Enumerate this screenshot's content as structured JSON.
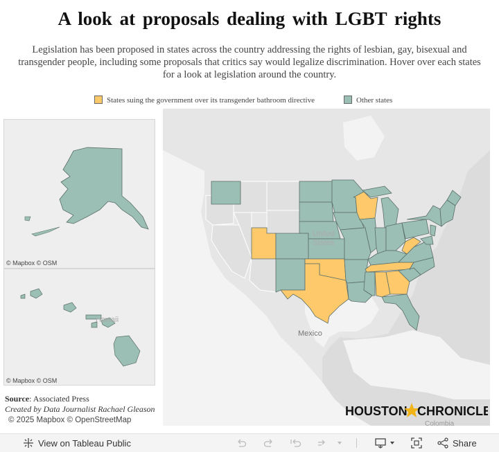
{
  "title": "A look at proposals dealing with LGBT rights",
  "subtitle": "Legislation has been proposed in states across the country addressing the rights of lesbian, gay, bisexual and transgender people, including some proposals that critics say would legalize discrimination. Hover over each states for a look at legislation around the country.",
  "legend": {
    "items": [
      {
        "label": "States suing the government over its transgender bathroom directive",
        "color": "#fdc96b"
      },
      {
        "label": "Other states",
        "color": "#9bbfb4"
      }
    ]
  },
  "map": {
    "place_labels": {
      "country": "United States",
      "country_line1": "United",
      "country_line2": "States",
      "mexico": "Mexico",
      "colombia": "Colombia",
      "hawaii": "Hawaii"
    },
    "suing_states": [
      "Utah",
      "Texas",
      "Oklahoma",
      "Wisconsin",
      "Tennessee",
      "Alabama",
      "Georgia",
      "West Virginia"
    ],
    "attribution_inset": "© Mapbox  © OSM"
  },
  "footer": {
    "source_label": "Source",
    "source_text": ": Associated Press",
    "credit": "Created by Data Journalist Rachael Gleason",
    "copyright": "© 2025 Mapbox  © OpenStreetMap",
    "logo_left": "HOUSTON",
    "logo_right": "CHRONICLE"
  },
  "toolbar": {
    "view_label": "View on Tableau Public",
    "share_label": "Share"
  },
  "colors": {
    "suing": "#fdc96b",
    "other": "#9bbfb4",
    "border": "#5a6e68",
    "land": "#e4e4e4",
    "water": "#f0f0f0"
  }
}
